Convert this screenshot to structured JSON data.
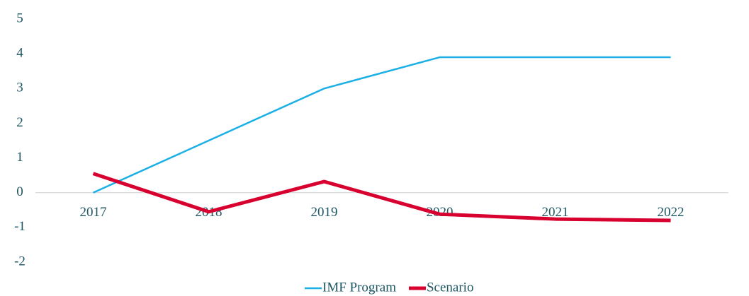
{
  "chart_data": {
    "type": "line",
    "categories": [
      "2017",
      "2018",
      "2019",
      "2020",
      "2021",
      "2022"
    ],
    "series": [
      {
        "name": "IMF Program",
        "color": "#1ab0e6",
        "values": [
          0,
          1.5,
          3.0,
          3.9,
          3.9,
          3.9
        ]
      },
      {
        "name": "Scenario",
        "color": "#d7002e",
        "values": [
          0.55,
          -0.55,
          0.32,
          -0.62,
          -0.76,
          -0.8
        ]
      }
    ],
    "ylim": [
      -2,
      5
    ],
    "yticks": [
      -2,
      -1,
      0,
      1,
      2,
      3,
      4,
      5
    ],
    "grid": false,
    "legend": "bottom"
  }
}
